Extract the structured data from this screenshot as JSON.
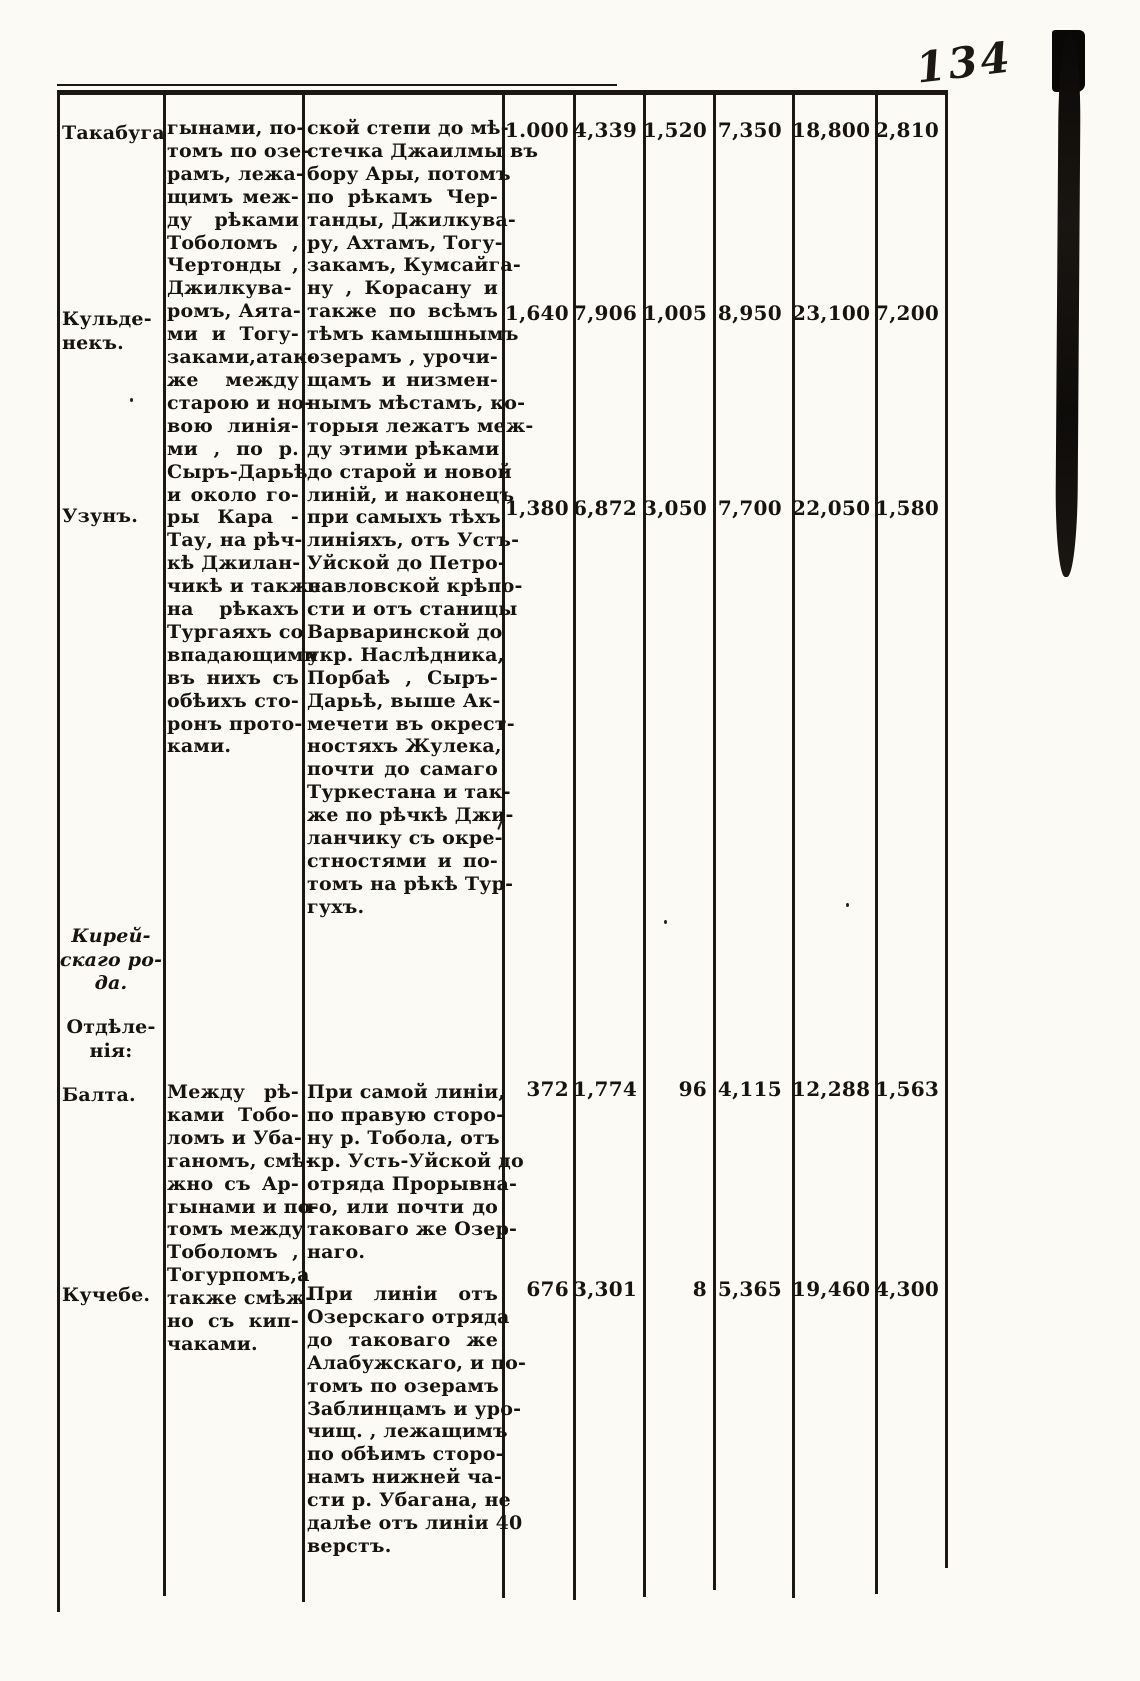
{
  "page": {
    "handwritten_number": "134"
  },
  "col1": {
    "takabuga": "Такабуга",
    "kuldenek": [
      "Кульде-",
      "некъ."
    ],
    "uzun": "Узунъ.",
    "kirei": [
      "Кирей-",
      "скаго ро-",
      "да."
    ],
    "otdelenia": [
      "Отдѣле-",
      "нія:"
    ],
    "balta": "Балта.",
    "kuchebe": "Кучебе."
  },
  "text": {
    "col2_block1": [
      "гынами, по-",
      "томъ по озе-",
      "рамъ, лежа-",
      "щимъ меж-",
      "ду рѣками",
      "Тоболомъ ,",
      "Чертонды ,",
      "Джилкува-",
      "ромъ, Аята-",
      "ми и Тогу-",
      "заками,атак-",
      "же между",
      "старою и но-",
      "вою линія-",
      "ми , по р.",
      "Сыръ-Дарьѣ",
      "и около го-",
      "ры Кара -",
      "Тау, на рѣч-",
      "кѣ Джилан-",
      "чикѣ и также",
      "на рѣкахъ",
      "Тургаяхъ со",
      "впадающими",
      "въ нихъ съ",
      "обѣихъ сто-",
      "ронъ прото-",
      "ками."
    ],
    "col3_block1": [
      "ской степи до мѣ-",
      "стечка Джаилмы въ",
      "бору Ары, потомъ",
      "по рѣкамъ Чер-",
      "танды, Джилкува-",
      "ру, Ахтамъ, Тогу-",
      "закамъ, Кумсайга-",
      "ну , Корасану и",
      "также по всѣмъ",
      "тѣмъ камышнымъ",
      "озерамъ , урочи-",
      "щамъ и низмен-",
      "нымъ мѣстамъ, ко-",
      "торыя лежатъ меж-",
      "ду этими рѣками",
      "до старой и новой",
      "линій, и наконецъ",
      "при самыхъ тѣхъ",
      "линіяхъ, отъ Устъ-",
      "Уйской до Петро-",
      "павловской крѣпо-",
      "сти и отъ станицы",
      "Варваринской до",
      "укр. Наслѣдника,",
      "Порбаѣ , Сыръ-",
      "Дарьѣ, выше Ак-",
      "мечети въ окрест-",
      "ностяхъ Жулека,",
      "почти до самаго",
      "Туркестана и так-",
      "же по рѣчкѣ Джи-",
      "ланчику съ окре-",
      "стностями и по-",
      "томъ на рѣкѣ Тур-",
      "гухъ."
    ],
    "col2_balta": [
      "Между рѣ-",
      "ками Тобо-",
      "ломъ и Уба-",
      "ганомъ, смѣ-",
      "жно съ Ар-",
      "гынами и по-",
      "томъ между",
      "Тоболомъ ,",
      "Тогурпомъ,а",
      "также смѣж-",
      "но съ кип-",
      "чаками."
    ],
    "col3_balta": [
      "При самой линіи,",
      "по правую сторо-",
      "ну р. Тобола, отъ",
      "кр. Усть-Уйской до",
      "отряда Прорывна-",
      "го, или почти до",
      "таковаго же Озер-",
      "наго."
    ],
    "col3_kuchebe": [
      "При линіи отъ",
      "Озерскаго отряда",
      "до таковаго же",
      "Алабужскаго, и по-",
      "томъ по озерамъ",
      "Заблинцамъ и уро-",
      "чищ. , лежащимъ",
      "по обѣимъ сторо-",
      "намъ нижней ча-",
      "сти р. Убагана, не",
      "далѣе отъ линіи 40",
      "верстъ."
    ]
  },
  "numbers": {
    "takabuga": [
      "1.000",
      "4,339",
      "1,520",
      "7,350",
      "18,800",
      "2,810"
    ],
    "kuldenek": [
      "1,640",
      "7,906",
      "1,005",
      "8,950",
      "23,100",
      "7,200"
    ],
    "uzun": [
      "1,380",
      "6,872",
      "3,050",
      "7,700",
      "22,050",
      "1,580"
    ],
    "balta": [
      "372",
      "1,774",
      "96",
      "4,115",
      "12,288",
      "1,563"
    ],
    "kuchebe": [
      "676",
      "3,301",
      "8",
      "5,365",
      "19,460",
      "4,300"
    ]
  }
}
